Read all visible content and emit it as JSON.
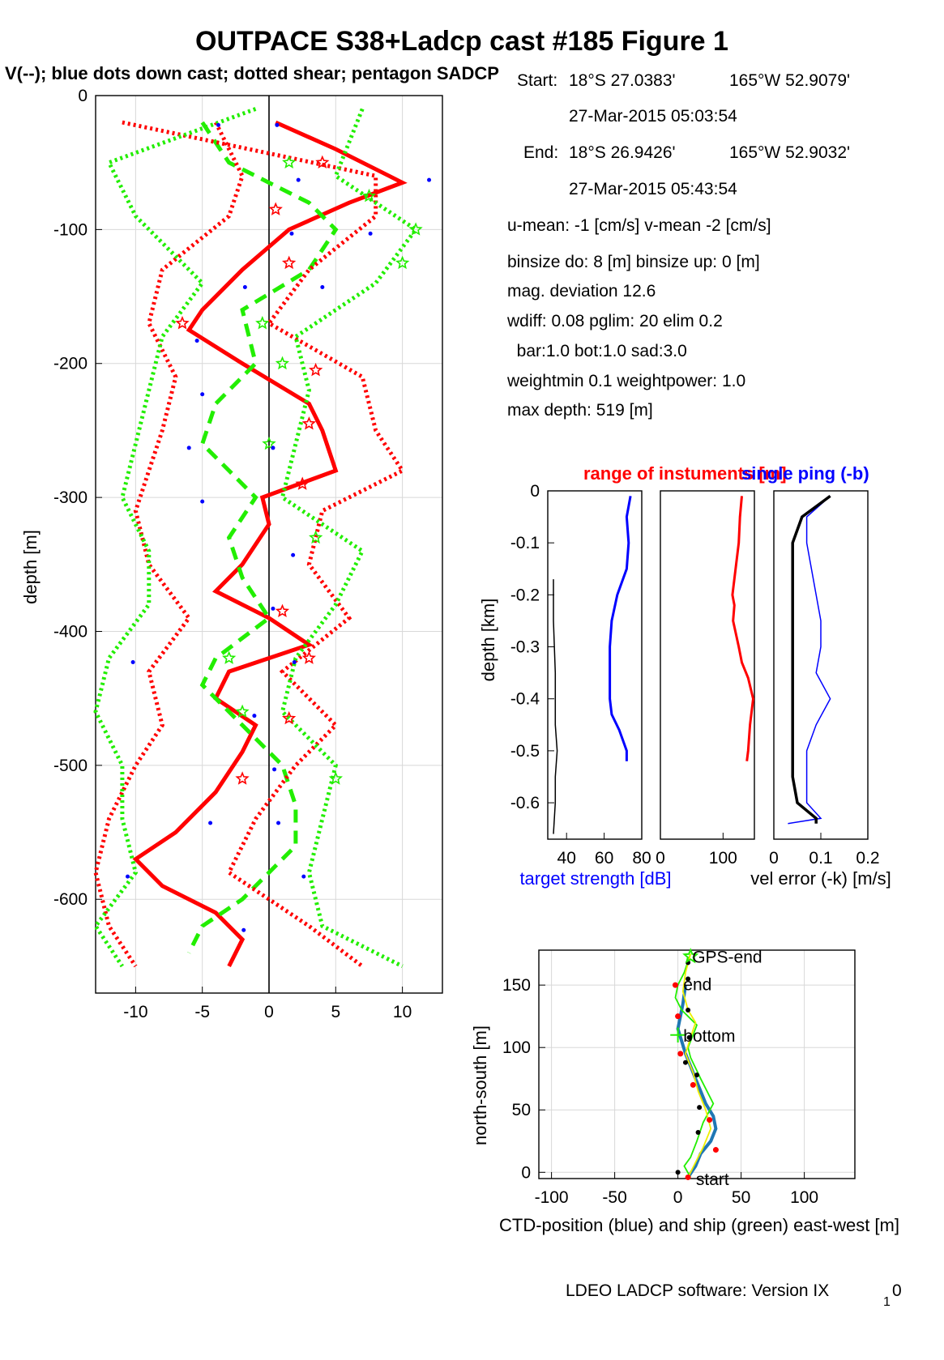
{
  "header": {
    "title": "OUTPACE S38+Ladcp cast #185  Figure 1",
    "subtitle": "V(--); blue dots down cast; dotted shear; pentagon SADCP"
  },
  "info": {
    "start_label": "Start:",
    "start_lat": "18°S 27.0383'",
    "start_lon": "165°W 52.9079'",
    "start_time": "27-Mar-2015 05:03:54",
    "end_label": "End:",
    "end_lat": "18°S 26.9426'",
    "end_lon": "165°W 52.9032'",
    "end_time": "27-Mar-2015 05:43:54",
    "means": "u-mean:  -1 [cm/s]    v-mean  -2 [cm/s]",
    "binsize": "binsize do: 8 [m]  binsize up:  0 [m]",
    "magdev": "mag. deviation 12.6",
    "wdiff": "wdiff: 0.08  pglim: 20  elim 0.2",
    "bar": "  bar:1.0 bot:1.0 sad:3.0",
    "weight": "weightmin 0.1  weightpower: 1.0",
    "maxdepth": "max depth: 519 [m]"
  },
  "footer": "LDEO LADCP software: Version IX",
  "footer_sub": "1",
  "footer_tail": "0",
  "colors": {
    "red": "#ff0000",
    "green": "#22ee00",
    "blue": "#0000ff",
    "black": "#000000",
    "yellow": "#eeee00",
    "ctd": "#1f77b4"
  },
  "chart_data": [
    {
      "type": "line",
      "name": "main-velocity-profile",
      "ylabel": "depth [m]",
      "xlim": [
        -13,
        13
      ],
      "ylim": [
        -670,
        0
      ],
      "xticks": [
        -10,
        -5,
        0,
        5,
        10
      ],
      "yticks": [
        0,
        -100,
        -200,
        -300,
        -400,
        -500,
        -600
      ],
      "grid": true,
      "series": [
        {
          "role": "u-total",
          "color": "#ff0000",
          "style": "solid-thick",
          "depth": [
            -20,
            -40,
            -60,
            -65,
            -80,
            -100,
            -130,
            -160,
            -175,
            -200,
            -230,
            -250,
            -280,
            -300,
            -320,
            -350,
            -370,
            -390,
            -410,
            -430,
            -450,
            -470,
            -490,
            -520,
            -550,
            -570,
            -590,
            -610,
            -630,
            -650
          ],
          "value": [
            0.5,
            5,
            9,
            10,
            6,
            1.5,
            -2,
            -5,
            -6,
            -2,
            3,
            4,
            5,
            -0.5,
            0,
            -2,
            -4,
            0,
            3,
            -3,
            -4,
            -1,
            -2,
            -4,
            -7,
            -10,
            -8,
            -4,
            -2,
            -3
          ]
        },
        {
          "role": "v-total",
          "color": "#22ee00",
          "style": "dashed-thick",
          "depth": [
            -20,
            -50,
            -80,
            -100,
            -130,
            -160,
            -200,
            -230,
            -260,
            -280,
            -300,
            -330,
            -360,
            -390,
            -420,
            -440,
            -470,
            -500,
            -530,
            -560,
            -600,
            -620,
            -640
          ],
          "value": [
            -5,
            -3,
            3,
            5,
            3,
            -2,
            -1,
            -4,
            -5,
            -3,
            -1,
            -3,
            -2,
            0,
            -4,
            -5,
            -2,
            1,
            2,
            2,
            -2,
            -5,
            -6
          ]
        },
        {
          "role": "u-shear-up",
          "color": "#ff0000",
          "style": "dotted",
          "depth": [
            -20,
            -60,
            -90,
            -130,
            -170,
            -210,
            -250,
            -280,
            -310,
            -350,
            -390,
            -430,
            -470,
            -500,
            -540,
            -580,
            -620,
            -650
          ],
          "value": [
            -11,
            8,
            8,
            3,
            0,
            7,
            8,
            10,
            4,
            3,
            6,
            1,
            5,
            2,
            -1,
            -3,
            3,
            7
          ]
        },
        {
          "role": "u-shear-down",
          "color": "#ff0000",
          "style": "dotted",
          "depth": [
            -20,
            -60,
            -90,
            -130,
            -170,
            -210,
            -250,
            -280,
            -310,
            -350,
            -390,
            -430,
            -470,
            -500,
            -540,
            -580,
            -620,
            -650
          ],
          "value": [
            -4,
            -2,
            -3,
            -8,
            -9,
            -7,
            -8,
            -9,
            -10,
            -9,
            -6,
            -9,
            -8,
            -10,
            -12,
            -13,
            -12,
            -10
          ]
        },
        {
          "role": "v-shear-up",
          "color": "#22ee00",
          "style": "dotted",
          "depth": [
            -10,
            -60,
            -100,
            -140,
            -180,
            -220,
            -260,
            -300,
            -340,
            -380,
            -420,
            -460,
            -500,
            -540,
            -580,
            -620,
            -650
          ],
          "value": [
            7,
            5,
            11,
            8,
            2,
            3,
            2,
            1,
            7,
            5,
            2,
            1,
            5,
            4,
            3,
            4,
            10
          ]
        },
        {
          "role": "v-shear-down",
          "color": "#22ee00",
          "style": "dotted",
          "depth": [
            -10,
            -50,
            -90,
            -140,
            -180,
            -220,
            -260,
            -300,
            -340,
            -380,
            -420,
            -460,
            -500,
            -540,
            -580,
            -620,
            -650
          ],
          "value": [
            -1,
            -12,
            -10,
            -5,
            -8,
            -9,
            -10,
            -11,
            -9,
            -9,
            -12,
            -13,
            -11,
            -11,
            -10,
            -13,
            -11
          ]
        }
      ],
      "sadcp_u": [
        {
          "depth": -50,
          "value": 4
        },
        {
          "depth": -85,
          "value": 0.5
        },
        {
          "depth": -125,
          "value": 1.5
        },
        {
          "depth": -170,
          "value": -6.5
        },
        {
          "depth": -205,
          "value": 3.5
        },
        {
          "depth": -245,
          "value": 3
        },
        {
          "depth": -290,
          "value": 2.5
        },
        {
          "depth": -385,
          "value": 1
        },
        {
          "depth": -420,
          "value": 3
        },
        {
          "depth": -465,
          "value": 1.5
        },
        {
          "depth": -510,
          "value": -2
        }
      ],
      "sadcp_v": [
        {
          "depth": -50,
          "value": 1.5
        },
        {
          "depth": -75,
          "value": 7.5
        },
        {
          "depth": -100,
          "value": 11
        },
        {
          "depth": -125,
          "value": 10
        },
        {
          "depth": -170,
          "value": -0.5
        },
        {
          "depth": -200,
          "value": 1
        },
        {
          "depth": -260,
          "value": 0
        },
        {
          "depth": -330,
          "value": 3.5
        },
        {
          "depth": -420,
          "value": -3
        },
        {
          "depth": -460,
          "value": -2
        },
        {
          "depth": -510,
          "value": 5
        }
      ],
      "downcast_dots": [
        {
          "depth": -22,
          "value": -3.8
        },
        {
          "depth": -22,
          "value": 0.6
        },
        {
          "depth": -63,
          "value": 2.2
        },
        {
          "depth": -63,
          "value": 12
        },
        {
          "depth": -103,
          "value": 1.7
        },
        {
          "depth": -103,
          "value": 7.6
        },
        {
          "depth": -143,
          "value": -1.8
        },
        {
          "depth": -143,
          "value": 4
        },
        {
          "depth": -183,
          "value": -5.4
        },
        {
          "depth": -223,
          "value": -5
        },
        {
          "depth": -263,
          "value": -6
        },
        {
          "depth": -263,
          "value": 0.3
        },
        {
          "depth": -303,
          "value": -5
        },
        {
          "depth": -343,
          "value": 1.8
        },
        {
          "depth": -383,
          "value": 0.3
        },
        {
          "depth": -423,
          "value": -10.2
        },
        {
          "depth": -423,
          "value": 1.9
        },
        {
          "depth": -463,
          "value": -1.1
        },
        {
          "depth": -503,
          "value": 0.4
        },
        {
          "depth": -543,
          "value": -4.4
        },
        {
          "depth": -543,
          "value": 0.7
        },
        {
          "depth": -583,
          "value": -10.6
        },
        {
          "depth": -583,
          "value": 2.6
        },
        {
          "depth": -623,
          "value": -1.9
        }
      ]
    },
    {
      "type": "line",
      "name": "target-strength",
      "title": "range of instuments [m]",
      "xlabel": "target strength [dB]",
      "ylabel": "depth [km]",
      "xlim": [
        30,
        80
      ],
      "ylim": [
        -0.67,
        0
      ],
      "xticks": [
        40,
        60,
        80
      ],
      "yticks": [
        0,
        -0.1,
        -0.2,
        -0.3,
        -0.4,
        -0.5,
        -0.6
      ],
      "series": [
        {
          "role": "target-strength",
          "color": "#0000ff",
          "depth": [
            -0.01,
            -0.05,
            -0.1,
            -0.15,
            -0.2,
            -0.25,
            -0.3,
            -0.35,
            -0.4,
            -0.43,
            -0.46,
            -0.5,
            -0.52
          ],
          "value": [
            74,
            72,
            73,
            72,
            67,
            64,
            63,
            63,
            63,
            64,
            68,
            72,
            72
          ]
        },
        {
          "role": "reference",
          "color": "#000000",
          "depth": [
            -0.17,
            -0.25,
            -0.35,
            -0.45,
            -0.5,
            -0.55,
            -0.6,
            -0.66
          ],
          "value": [
            33,
            33,
            34,
            34,
            35,
            34,
            34,
            33
          ]
        }
      ]
    },
    {
      "type": "line",
      "name": "range-of-instruments",
      "xlim": [
        0,
        150
      ],
      "ylim": [
        -0.67,
        0
      ],
      "xticks": [
        0,
        100
      ],
      "series": [
        {
          "role": "range",
          "color": "#ff0000",
          "depth": [
            -0.01,
            -0.05,
            -0.1,
            -0.15,
            -0.2,
            -0.22,
            -0.25,
            -0.3,
            -0.33,
            -0.36,
            -0.4,
            -0.45,
            -0.5,
            -0.52
          ],
          "value": [
            130,
            127,
            125,
            120,
            115,
            118,
            116,
            125,
            130,
            140,
            148,
            143,
            140,
            138
          ]
        }
      ]
    },
    {
      "type": "line",
      "name": "velocity-error",
      "title": "single ping (-b)",
      "xlabel": "vel error (-k) [m/s]",
      "xlim": [
        0,
        0.2
      ],
      "ylim": [
        -0.67,
        0
      ],
      "xticks": [
        0,
        0.1,
        0.2
      ],
      "series": [
        {
          "role": "single-ping",
          "color": "#0000ff",
          "depth": [
            -0.01,
            -0.05,
            -0.1,
            -0.15,
            -0.2,
            -0.25,
            -0.3,
            -0.35,
            -0.4,
            -0.45,
            -0.5,
            -0.55,
            -0.6,
            -0.63,
            -0.64
          ],
          "value": [
            0.12,
            0.07,
            0.07,
            0.08,
            0.09,
            0.1,
            0.1,
            0.09,
            0.12,
            0.09,
            0.07,
            0.07,
            0.07,
            0.1,
            0.03
          ]
        },
        {
          "role": "vel-error",
          "color": "#000000",
          "depth": [
            -0.01,
            -0.05,
            -0.1,
            -0.15,
            -0.2,
            -0.25,
            -0.3,
            -0.35,
            -0.4,
            -0.45,
            -0.5,
            -0.55,
            -0.6,
            -0.63,
            -0.64
          ],
          "value": [
            0.12,
            0.06,
            0.04,
            0.04,
            0.04,
            0.04,
            0.04,
            0.04,
            0.04,
            0.04,
            0.04,
            0.04,
            0.05,
            0.09,
            0.09
          ]
        }
      ]
    },
    {
      "type": "line",
      "name": "position-plot",
      "xlabel": "CTD-position (blue) and ship (green) east-west [m]",
      "ylabel": "north-south [m]",
      "xlim": [
        -110,
        140
      ],
      "ylim": [
        -5,
        178
      ],
      "xticks": [
        -100,
        -50,
        0,
        50,
        100
      ],
      "yticks": [
        0,
        50,
        100,
        150
      ],
      "annotations": [
        {
          "text": "GPS-end",
          "x": 10,
          "y": 173
        },
        {
          "text": "end",
          "x": 3,
          "y": 151
        },
        {
          "text": "bottom",
          "x": 3,
          "y": 110
        },
        {
          "text": "start",
          "x": 13,
          "y": -5
        }
      ],
      "series": [
        {
          "role": "ctd-position",
          "color": "#1f77b4",
          "x": [
            8,
            14,
            18,
            26,
            30,
            28,
            22,
            18,
            14,
            10,
            6,
            3,
            0,
            2,
            4,
            6
          ],
          "y": [
            -4,
            5,
            15,
            25,
            35,
            45,
            55,
            65,
            75,
            85,
            95,
            105,
            115,
            125,
            135,
            150
          ]
        },
        {
          "role": "ship",
          "color": "#22ee00",
          "x": [
            10,
            5,
            0,
            -2,
            3,
            8,
            15,
            12,
            8,
            10,
            18,
            28,
            20,
            15,
            10,
            5,
            10
          ],
          "y": [
            175,
            160,
            150,
            140,
            130,
            125,
            118,
            110,
            100,
            92,
            75,
            55,
            40,
            25,
            12,
            5,
            -4
          ]
        },
        {
          "role": "ship-yellow",
          "color": "#eeee00",
          "x": [
            10,
            6,
            4,
            8,
            14,
            10,
            6,
            12,
            16,
            22,
            26,
            20,
            14,
            8
          ],
          "y": [
            175,
            160,
            145,
            130,
            120,
            108,
            95,
            80,
            65,
            50,
            35,
            20,
            8,
            -4
          ]
        }
      ],
      "markers_red": [
        {
          "x": 8,
          "y": -4
        },
        {
          "x": 30,
          "y": 18
        },
        {
          "x": 25,
          "y": 42
        },
        {
          "x": 12,
          "y": 70
        },
        {
          "x": 2,
          "y": 95
        },
        {
          "x": 0,
          "y": 125
        },
        {
          "x": -2,
          "y": 150
        }
      ],
      "markers_black": [
        {
          "x": 0,
          "y": 0
        },
        {
          "x": 16,
          "y": 32
        },
        {
          "x": 17,
          "y": 52
        },
        {
          "x": 15,
          "y": 78
        },
        {
          "x": 6,
          "y": 88
        },
        {
          "x": 9,
          "y": 108
        },
        {
          "x": 8,
          "y": 130
        },
        {
          "x": 8,
          "y": 155
        },
        {
          "x": 8,
          "y": 168
        }
      ]
    }
  ]
}
